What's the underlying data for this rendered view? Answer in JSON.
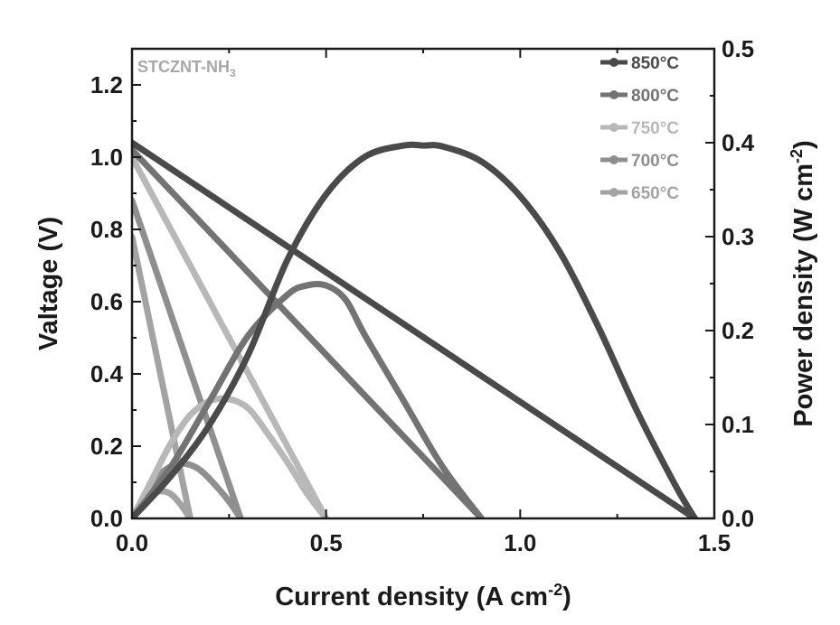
{
  "chart_data": {
    "type": "line",
    "annotation": "STCZNT-NH",
    "annotation_sub": "3",
    "xlabel": "Current density (A cm",
    "xlabel_sup": "-2",
    "xlabel_end": ")",
    "ylabel_left": "Valtage (V)",
    "ylabel_right": "Power density (W cm",
    "ylabel_right_sup": "-2",
    "ylabel_right_end": ")",
    "xlim": [
      0,
      1.5
    ],
    "ylim_left": [
      0,
      1.3
    ],
    "ylim_right": [
      0,
      0.5
    ],
    "x_ticks": [
      "0.0",
      "0.5",
      "1.0",
      "1.5"
    ],
    "y_left_ticks": [
      "0.0",
      "0.2",
      "0.4",
      "0.6",
      "0.8",
      "1.0",
      "1.2"
    ],
    "y_right_ticks": [
      "0.0",
      "0.1",
      "0.2",
      "0.3",
      "0.4",
      "0.5"
    ],
    "legend_position": "top-right",
    "grid": false,
    "series": [
      {
        "name": "850°C",
        "color": "#4a4a4a",
        "voltage": {
          "x": [
            0,
            1.45
          ],
          "y": [
            1.04,
            0.0
          ]
        },
        "power": {
          "x": [
            0,
            0.1,
            0.2,
            0.3,
            0.4,
            0.5,
            0.6,
            0.7,
            0.75,
            0.8,
            0.9,
            1.0,
            1.1,
            1.2,
            1.3,
            1.4,
            1.45
          ],
          "y": [
            0,
            0.045,
            0.1,
            0.175,
            0.275,
            0.345,
            0.385,
            0.397,
            0.397,
            0.396,
            0.38,
            0.343,
            0.285,
            0.205,
            0.115,
            0.035,
            0.0
          ]
        }
      },
      {
        "name": "800°C",
        "color": "#737373",
        "voltage": {
          "x": [
            0,
            0.9
          ],
          "y": [
            1.02,
            0.0
          ]
        },
        "power": {
          "x": [
            0,
            0.1,
            0.2,
            0.3,
            0.4,
            0.45,
            0.5,
            0.55,
            0.6,
            0.7,
            0.8,
            0.9
          ],
          "y": [
            0,
            0.055,
            0.125,
            0.195,
            0.238,
            0.248,
            0.248,
            0.233,
            0.195,
            0.125,
            0.055,
            0.0
          ]
        }
      },
      {
        "name": "750°C",
        "color": "#b8b8b8",
        "voltage": {
          "x": [
            0,
            0.5
          ],
          "y": [
            1.0,
            0.0
          ]
        },
        "power": {
          "x": [
            0,
            0.05,
            0.1,
            0.15,
            0.2,
            0.25,
            0.3,
            0.35,
            0.4,
            0.45,
            0.5
          ],
          "y": [
            0,
            0.04,
            0.08,
            0.11,
            0.125,
            0.127,
            0.117,
            0.09,
            0.06,
            0.027,
            0.0
          ]
        }
      },
      {
        "name": "700°C",
        "color": "#8f8f8f",
        "voltage": {
          "x": [
            0,
            0.28
          ],
          "y": [
            0.88,
            0.0
          ]
        },
        "power": {
          "x": [
            0,
            0.04,
            0.08,
            0.12,
            0.15,
            0.18,
            0.22,
            0.25,
            0.28
          ],
          "y": [
            0,
            0.03,
            0.05,
            0.058,
            0.057,
            0.05,
            0.033,
            0.018,
            0.0
          ]
        }
      },
      {
        "name": "650°C",
        "color": "#a3a3a3",
        "voltage": {
          "x": [
            0,
            0.15
          ],
          "y": [
            0.78,
            0.0
          ]
        },
        "power": {
          "x": [
            0,
            0.025,
            0.05,
            0.075,
            0.1,
            0.125,
            0.15
          ],
          "y": [
            0,
            0.017,
            0.026,
            0.029,
            0.026,
            0.015,
            0.0
          ]
        }
      }
    ]
  }
}
